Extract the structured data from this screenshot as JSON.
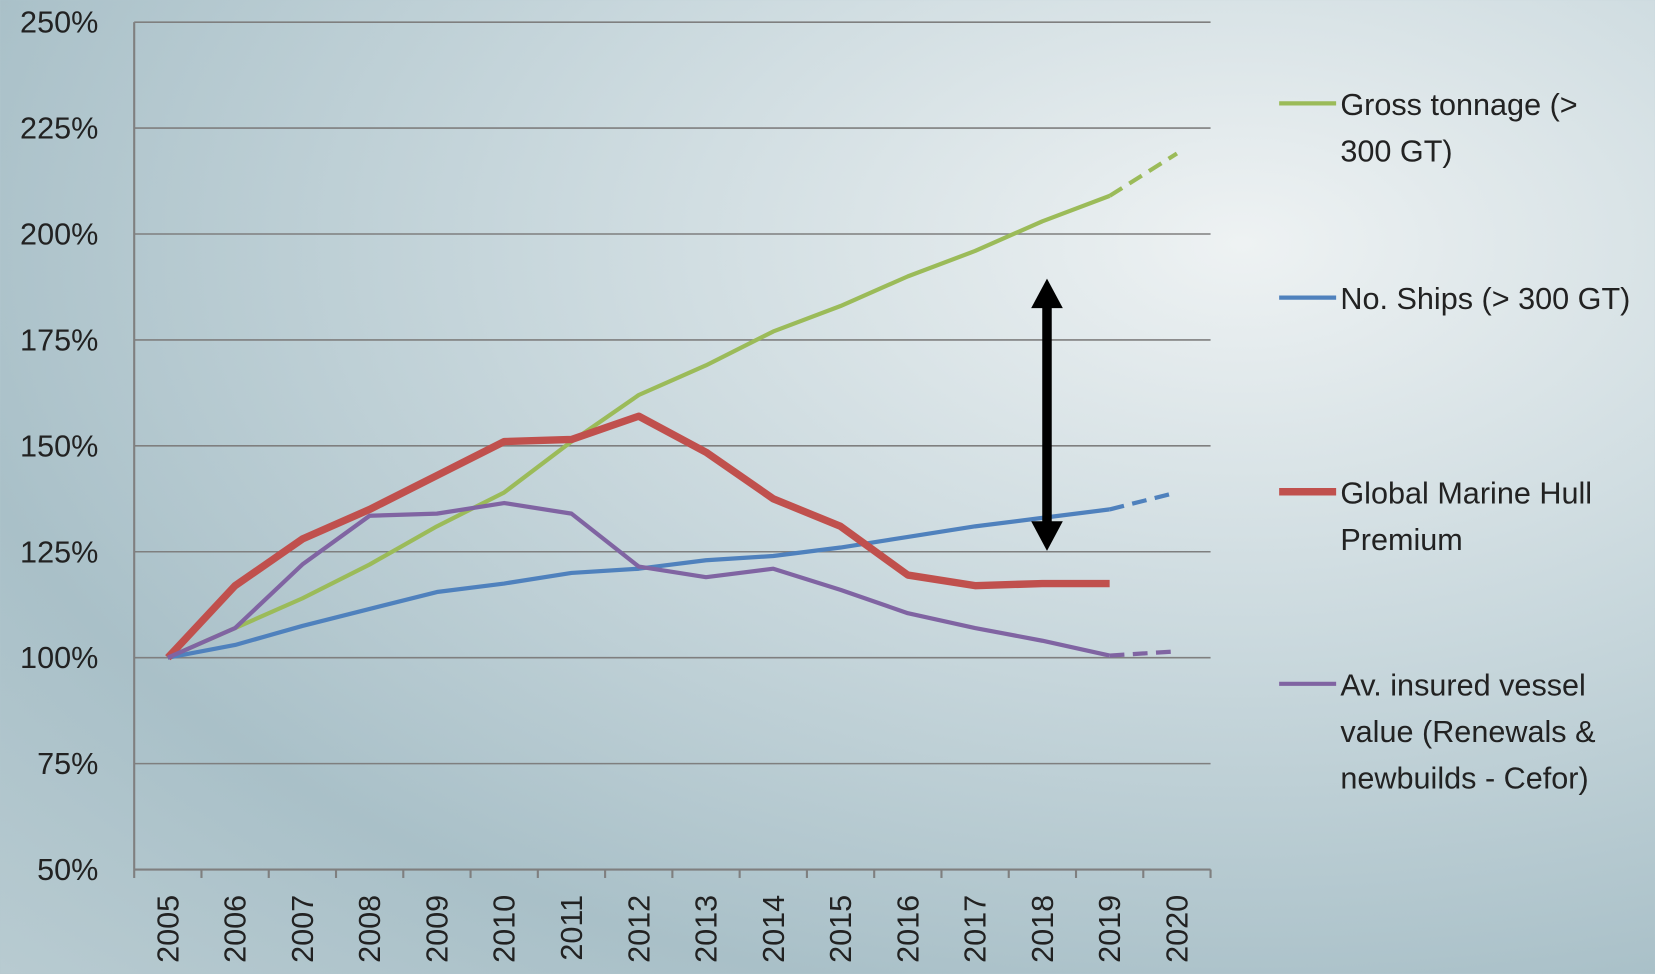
{
  "chart_data": {
    "type": "line",
    "categories": [
      "2005",
      "2006",
      "2007",
      "2008",
      "2009",
      "2010",
      "2011",
      "2012",
      "2013",
      "2014",
      "2015",
      "2016",
      "2017",
      "2018",
      "2019",
      "2020"
    ],
    "projection_from": "2019",
    "series": [
      {
        "name": "Gross tonnage (> 300 GT)",
        "color": "#9bbb59",
        "width": 4,
        "values": [
          100,
          107,
          114,
          122,
          131,
          139,
          151,
          162,
          169,
          177,
          183,
          190,
          196,
          203,
          209,
          219
        ]
      },
      {
        "name": "No. Ships (> 300 GT)",
        "color": "#4f81bd",
        "width": 4,
        "values": [
          100,
          103,
          107.5,
          111.5,
          115.5,
          117.5,
          120,
          121,
          123,
          124,
          126,
          128.5,
          131,
          133,
          135,
          139
        ]
      },
      {
        "name": "Global Marine Hull Premium",
        "color": "#c0504d",
        "width": 7,
        "values": [
          100,
          117,
          128,
          135,
          143,
          151,
          151.5,
          157,
          148.5,
          137.5,
          131,
          119.5,
          117,
          117.5,
          117.5,
          null
        ]
      },
      {
        "name": "Av. insured vessel value (Renewals & newbuilds - Cefor)",
        "color": "#8064a2",
        "width": 4,
        "values": [
          100,
          107,
          122,
          133.5,
          134,
          136.5,
          134,
          121.5,
          119,
          121,
          116,
          110.5,
          107,
          104,
          100.5,
          101.5
        ]
      }
    ],
    "ylim": [
      50,
      250
    ],
    "yticks": [
      {
        "value": 50,
        "label": "50%"
      },
      {
        "value": 75,
        "label": "75%"
      },
      {
        "value": 100,
        "label": "100%"
      },
      {
        "value": 125,
        "label": "125%"
      },
      {
        "value": 150,
        "label": "150%"
      },
      {
        "value": 175,
        "label": "175%"
      },
      {
        "value": 200,
        "label": "200%"
      },
      {
        "value": 225,
        "label": "225%"
      },
      {
        "value": 250,
        "label": "250%"
      }
    ],
    "grid": true,
    "legend": "right"
  }
}
